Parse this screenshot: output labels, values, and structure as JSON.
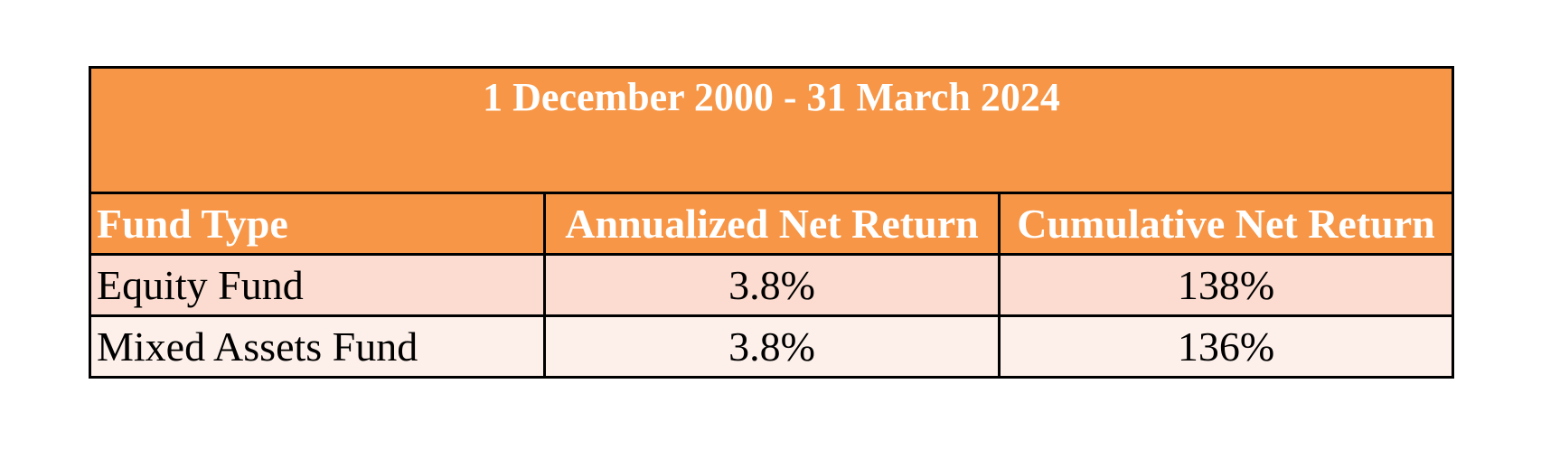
{
  "table": {
    "title": "1 December 2000 - 31 March 2024",
    "header": [
      "Fund Type",
      "Annualized Net Return",
      "Cumulative Net Return"
    ],
    "rows": [
      [
        "Equity Fund",
        "3.8%",
        "138%"
      ],
      [
        "Mixed Assets Fund",
        "3.8%",
        "136%"
      ]
    ]
  }
}
